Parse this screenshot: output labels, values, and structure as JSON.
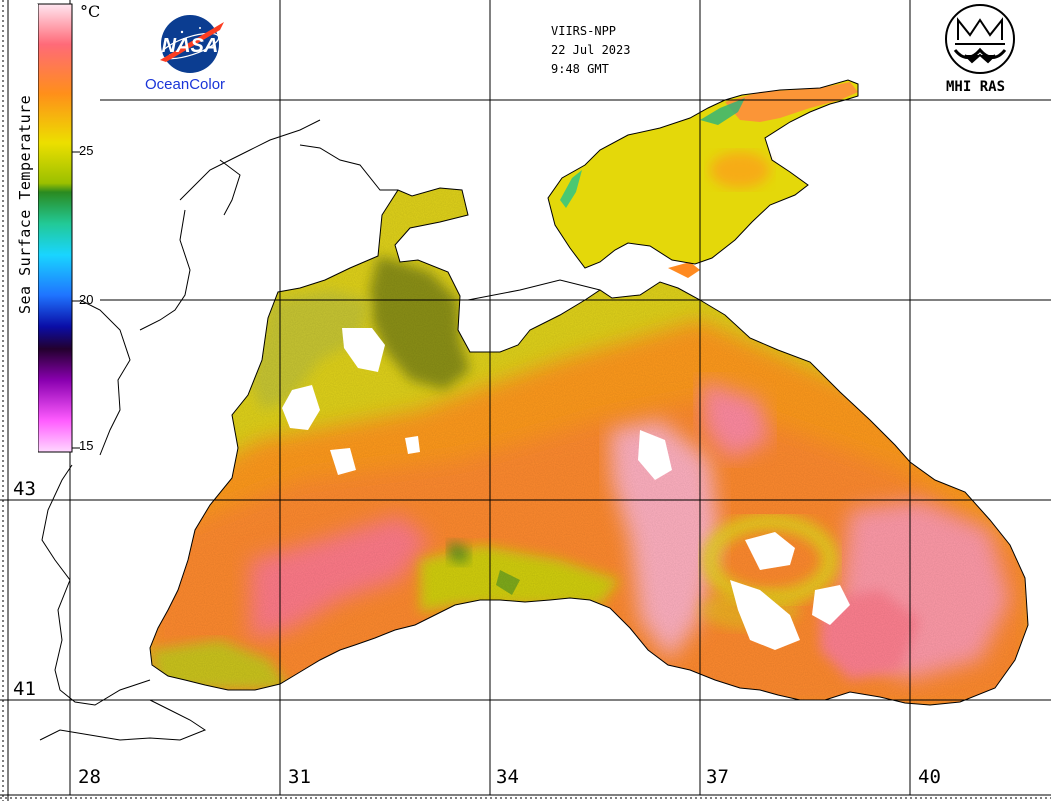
{
  "satellite": {
    "sensor": "VIIRS-NPP",
    "date": "22 Jul 2023",
    "time": "9:48 GMT"
  },
  "logos": {
    "nasa": {
      "emblem_text": "NASA",
      "caption": "OceanColor"
    },
    "mhi": {
      "caption": "MHI RAS"
    }
  },
  "colorbar": {
    "title": "Sea Surface Temperature",
    "unit": "°C",
    "ticks": [
      "25",
      "20",
      "15"
    ],
    "colors": [
      "#ffd7e8",
      "#ff5d6f",
      "#ff9a1a",
      "#e2e000",
      "#3a9a20",
      "#1fc98a",
      "#19d4ff",
      "#2a6dff",
      "#0b17c0",
      "#2b0033",
      "#8f00b4",
      "#ff6bff"
    ]
  },
  "axes": {
    "longitude": [
      "28",
      "31",
      "34",
      "37",
      "40"
    ],
    "latitude": [
      "43",
      "41"
    ]
  },
  "colors": {
    "land": "#ffffff",
    "coast": "#000000",
    "grid": "#000000"
  }
}
